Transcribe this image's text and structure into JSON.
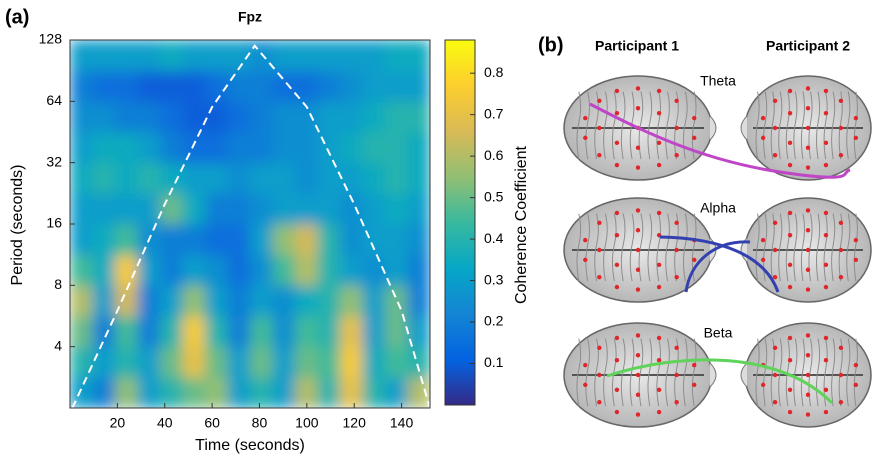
{
  "chart_data": {
    "type": "heatmap",
    "panel_label": "(a)",
    "title": "Fpz",
    "x_label": "Time (seconds)",
    "y_label": "Period (seconds)",
    "colorbar_label": "Coherence Coefficient",
    "xlim": [
      0,
      152
    ],
    "ylim": [
      2,
      128
    ],
    "yscale": "log",
    "xticks": [
      20,
      40,
      60,
      80,
      100,
      120,
      140
    ],
    "yticks": [
      4,
      8,
      16,
      32,
      64,
      128
    ],
    "clim": [
      0,
      0.88
    ],
    "cticks": [
      0.1,
      0.2,
      0.3,
      0.4,
      0.5,
      0.6,
      0.7,
      0.8
    ],
    "colormap": "parula",
    "x_edges": [
      0,
      9.5,
      19,
      28.5,
      38,
      47.5,
      57,
      66.5,
      76,
      85.5,
      95,
      104.5,
      114,
      123.5,
      133,
      142.5,
      152
    ],
    "y_edges": [
      2,
      2.83,
      4,
      5.66,
      8,
      11.3,
      16,
      22.6,
      32,
      45.3,
      64,
      90.5,
      128
    ],
    "values": [
      [
        0.3,
        0.2,
        0.55,
        0.3,
        0.4,
        0.5,
        0.55,
        0.3,
        0.4,
        0.3,
        0.6,
        0.4,
        0.7,
        0.4,
        0.3,
        0.6
      ],
      [
        0.4,
        0.3,
        0.4,
        0.3,
        0.5,
        0.7,
        0.5,
        0.3,
        0.5,
        0.3,
        0.5,
        0.45,
        0.75,
        0.35,
        0.45,
        0.4
      ],
      [
        0.5,
        0.2,
        0.45,
        0.2,
        0.4,
        0.75,
        0.4,
        0.2,
        0.45,
        0.25,
        0.45,
        0.4,
        0.7,
        0.3,
        0.5,
        0.3
      ],
      [
        0.6,
        0.3,
        0.65,
        0.2,
        0.3,
        0.55,
        0.3,
        0.2,
        0.3,
        0.25,
        0.35,
        0.4,
        0.55,
        0.3,
        0.5,
        0.2
      ],
      [
        0.45,
        0.35,
        0.75,
        0.3,
        0.2,
        0.3,
        0.25,
        0.15,
        0.25,
        0.45,
        0.6,
        0.4,
        0.3,
        0.25,
        0.3,
        0.2
      ],
      [
        0.3,
        0.35,
        0.45,
        0.25,
        0.2,
        0.2,
        0.15,
        0.15,
        0.3,
        0.55,
        0.65,
        0.4,
        0.25,
        0.3,
        0.3,
        0.25
      ],
      [
        0.3,
        0.3,
        0.3,
        0.3,
        0.5,
        0.35,
        0.2,
        0.2,
        0.25,
        0.3,
        0.3,
        0.3,
        0.25,
        0.3,
        0.35,
        0.3
      ],
      [
        0.35,
        0.4,
        0.35,
        0.4,
        0.35,
        0.3,
        0.3,
        0.25,
        0.3,
        0.3,
        0.25,
        0.3,
        0.3,
        0.35,
        0.4,
        0.35
      ],
      [
        0.3,
        0.35,
        0.35,
        0.3,
        0.2,
        0.15,
        0.15,
        0.2,
        0.2,
        0.25,
        0.25,
        0.3,
        0.35,
        0.4,
        0.4,
        0.35
      ],
      [
        0.25,
        0.25,
        0.2,
        0.2,
        0.15,
        0.1,
        0.1,
        0.15,
        0.2,
        0.25,
        0.25,
        0.3,
        0.3,
        0.35,
        0.4,
        0.4
      ],
      [
        0.2,
        0.15,
        0.15,
        0.1,
        0.1,
        0.1,
        0.15,
        0.2,
        0.2,
        0.15,
        0.15,
        0.2,
        0.25,
        0.3,
        0.3,
        0.3
      ],
      [
        0.3,
        0.3,
        0.3,
        0.3,
        0.35,
        0.3,
        0.3,
        0.3,
        0.25,
        0.3,
        0.3,
        0.3,
        0.3,
        0.3,
        0.35,
        0.35
      ]
    ],
    "coi": {
      "color": "#ffffff",
      "x": [
        1,
        20,
        40,
        60,
        78,
        100,
        120,
        140,
        152
      ],
      "y": [
        2,
        6,
        20,
        60,
        120,
        60,
        20,
        6,
        2
      ]
    }
  },
  "panel_b": {
    "label": "(b)",
    "participants": [
      "Participant 1",
      "Participant 2"
    ],
    "bands": [
      {
        "name": "Theta",
        "color": "#c046c8"
      },
      {
        "name": "Alpha",
        "color": "#3340b0"
      },
      {
        "name": "Beta",
        "color": "#5fd35a"
      }
    ]
  }
}
